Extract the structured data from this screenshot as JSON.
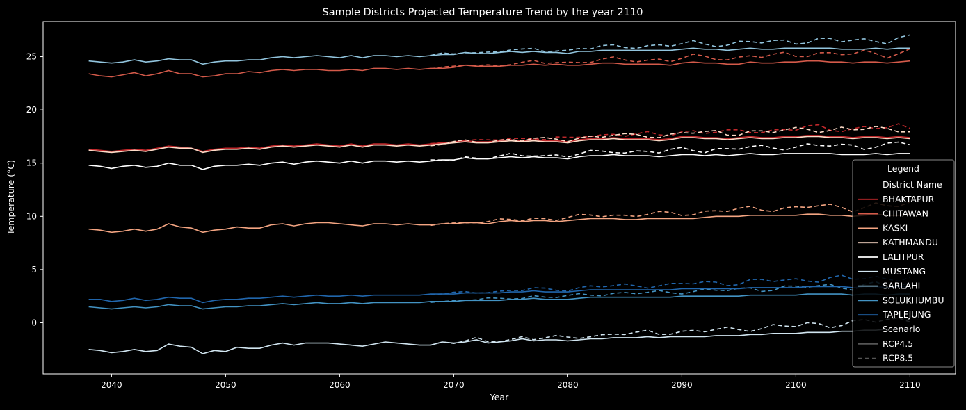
{
  "chart_data": {
    "type": "line",
    "title": "Sample Districts Projected Temperature Trend by the year 2110",
    "xlabel": "Year",
    "ylabel": "Temperature (°C)",
    "xlim": [
      2034,
      2114
    ],
    "ylim": [
      -4.8,
      28.3
    ],
    "xticks": [
      2040,
      2050,
      2060,
      2070,
      2080,
      2090,
      2100,
      2110
    ],
    "yticks": [
      0,
      5,
      10,
      15,
      20,
      25
    ],
    "grid": false,
    "legend": {
      "placement": "right",
      "title": "Legend",
      "group_headers": [
        "District Name",
        "Scenario"
      ],
      "scenario_items": [
        {
          "name": "RCP4.5",
          "style": "solid",
          "color": "#555555"
        },
        {
          "name": "RCP8.5",
          "style": "dashed",
          "color": "#555555"
        }
      ]
    },
    "series_meta": [
      {
        "name": "BHAKTAPUR",
        "color": "#c0282b",
        "base": [
          16.3,
          16.2,
          16.1,
          16.2,
          16.3,
          16.2,
          16.4,
          16.6,
          16.5,
          16.4,
          16.1,
          16.3,
          16.4,
          16.4,
          16.5,
          16.4,
          16.6,
          16.7,
          16.6,
          16.7,
          16.8,
          16.7,
          16.6,
          16.8,
          16.6,
          16.8,
          16.8,
          16.7,
          16.8,
          16.7,
          16.8,
          16.9,
          17.0,
          17.1,
          17.0,
          17.0,
          17.1,
          17.2,
          17.1,
          17.2,
          17.1,
          17.1,
          17.0,
          17.2,
          17.3,
          17.3,
          17.4,
          17.3,
          17.3,
          17.3,
          17.2,
          17.3,
          17.5,
          17.5,
          17.4,
          17.4,
          17.3,
          17.4,
          17.5,
          17.4,
          17.4,
          17.5,
          17.5,
          17.6,
          17.6,
          17.5,
          17.5,
          17.4,
          17.5,
          17.5,
          17.4,
          17.5,
          17.4
        ]
      },
      {
        "name": "CHITAWAN",
        "color": "#d45a4a",
        "base": [
          23.4,
          23.2,
          23.1,
          23.3,
          23.5,
          23.2,
          23.4,
          23.7,
          23.4,
          23.4,
          23.1,
          23.2,
          23.4,
          23.4,
          23.6,
          23.5,
          23.7,
          23.8,
          23.7,
          23.8,
          23.8,
          23.7,
          23.7,
          23.8,
          23.7,
          23.9,
          23.9,
          23.8,
          23.9,
          23.8,
          23.9,
          23.9,
          24.0,
          24.2,
          24.1,
          24.1,
          24.1,
          24.2,
          24.2,
          24.3,
          24.2,
          24.3,
          24.2,
          24.2,
          24.3,
          24.4,
          24.4,
          24.3,
          24.3,
          24.3,
          24.3,
          24.2,
          24.4,
          24.5,
          24.4,
          24.4,
          24.3,
          24.3,
          24.5,
          24.4,
          24.4,
          24.5,
          24.5,
          24.6,
          24.6,
          24.5,
          24.5,
          24.4,
          24.5,
          24.5,
          24.4,
          24.5,
          24.6
        ]
      },
      {
        "name": "KASKI",
        "color": "#f4a582",
        "base": [
          8.8,
          8.7,
          8.5,
          8.6,
          8.8,
          8.6,
          8.8,
          9.3,
          9.0,
          8.9,
          8.5,
          8.7,
          8.8,
          9.0,
          8.9,
          8.9,
          9.2,
          9.3,
          9.1,
          9.3,
          9.4,
          9.4,
          9.3,
          9.2,
          9.1,
          9.3,
          9.3,
          9.2,
          9.3,
          9.2,
          9.2,
          9.3,
          9.3,
          9.4,
          9.4,
          9.3,
          9.5,
          9.6,
          9.5,
          9.6,
          9.6,
          9.5,
          9.6,
          9.7,
          9.8,
          9.8,
          9.8,
          9.7,
          9.7,
          9.8,
          9.8,
          9.8,
          9.8,
          9.8,
          9.9,
          10.0,
          10.0,
          10.0,
          10.1,
          10.1,
          10.1,
          10.1,
          10.1,
          10.2,
          10.2,
          10.1,
          10.1,
          10.0,
          10.1,
          10.2,
          10.1,
          10.1,
          10.2
        ]
      },
      {
        "name": "KATHMANDU",
        "color": "#fddbc7",
        "base": [
          16.2,
          16.1,
          16.0,
          16.1,
          16.2,
          16.1,
          16.3,
          16.5,
          16.4,
          16.4,
          16.0,
          16.2,
          16.3,
          16.3,
          16.4,
          16.3,
          16.5,
          16.6,
          16.5,
          16.6,
          16.7,
          16.6,
          16.5,
          16.7,
          16.5,
          16.7,
          16.7,
          16.6,
          16.7,
          16.6,
          16.7,
          16.8,
          16.9,
          17.0,
          16.9,
          16.9,
          17.0,
          17.1,
          17.0,
          17.1,
          17.0,
          17.0,
          16.9,
          17.1,
          17.2,
          17.2,
          17.3,
          17.2,
          17.2,
          17.2,
          17.1,
          17.2,
          17.4,
          17.4,
          17.3,
          17.3,
          17.2,
          17.3,
          17.4,
          17.3,
          17.3,
          17.4,
          17.4,
          17.5,
          17.5,
          17.4,
          17.4,
          17.3,
          17.4,
          17.4,
          17.3,
          17.4,
          17.3
        ]
      },
      {
        "name": "LALITPUR",
        "color": "#ffffff",
        "base": [
          14.8,
          14.7,
          14.5,
          14.7,
          14.8,
          14.6,
          14.7,
          15.0,
          14.8,
          14.8,
          14.4,
          14.7,
          14.8,
          14.8,
          14.9,
          14.8,
          15.0,
          15.1,
          14.9,
          15.1,
          15.2,
          15.1,
          15.0,
          15.2,
          15.0,
          15.2,
          15.2,
          15.1,
          15.2,
          15.1,
          15.2,
          15.3,
          15.3,
          15.5,
          15.4,
          15.4,
          15.5,
          15.6,
          15.5,
          15.6,
          15.5,
          15.5,
          15.4,
          15.6,
          15.7,
          15.7,
          15.8,
          15.7,
          15.7,
          15.7,
          15.6,
          15.7,
          15.8,
          15.8,
          15.7,
          15.8,
          15.7,
          15.8,
          15.9,
          15.8,
          15.8,
          15.9,
          15.9,
          15.9,
          15.9,
          15.9,
          15.8,
          15.8,
          15.8,
          15.9,
          15.8,
          15.9,
          15.9
        ]
      },
      {
        "name": "MUSTANG",
        "color": "#d1e5f0",
        "base": [
          -2.5,
          -2.6,
          -2.8,
          -2.7,
          -2.5,
          -2.7,
          -2.6,
          -2.0,
          -2.2,
          -2.3,
          -2.9,
          -2.6,
          -2.7,
          -2.3,
          -2.4,
          -2.4,
          -2.1,
          -1.9,
          -2.1,
          -1.9,
          -1.9,
          -1.9,
          -2.0,
          -2.1,
          -2.2,
          -2.0,
          -1.8,
          -1.9,
          -2.0,
          -2.1,
          -2.1,
          -1.8,
          -1.9,
          -1.8,
          -1.6,
          -1.9,
          -1.8,
          -1.7,
          -1.5,
          -1.7,
          -1.6,
          -1.6,
          -1.7,
          -1.6,
          -1.5,
          -1.5,
          -1.4,
          -1.4,
          -1.4,
          -1.3,
          -1.4,
          -1.3,
          -1.3,
          -1.3,
          -1.3,
          -1.2,
          -1.2,
          -1.2,
          -1.1,
          -1.1,
          -1.0,
          -1.0,
          -1.0,
          -0.9,
          -0.9,
          -0.9,
          -0.8,
          -0.8,
          -0.7,
          -0.7,
          -0.6,
          -0.6,
          -0.6
        ]
      },
      {
        "name": "SARLAHI",
        "color": "#92c5de",
        "base": [
          24.6,
          24.5,
          24.4,
          24.5,
          24.7,
          24.5,
          24.6,
          24.8,
          24.7,
          24.7,
          24.3,
          24.5,
          24.6,
          24.6,
          24.7,
          24.7,
          24.9,
          25.0,
          24.9,
          25.0,
          25.1,
          25.0,
          24.9,
          25.1,
          24.9,
          25.1,
          25.1,
          25.0,
          25.1,
          25.0,
          25.1,
          25.2,
          25.2,
          25.4,
          25.3,
          25.3,
          25.4,
          25.5,
          25.4,
          25.5,
          25.4,
          25.4,
          25.3,
          25.5,
          25.5,
          25.6,
          25.6,
          25.6,
          25.6,
          25.6,
          25.6,
          25.6,
          25.7,
          25.8,
          25.7,
          25.7,
          25.6,
          25.7,
          25.8,
          25.7,
          25.7,
          25.8,
          25.8,
          25.8,
          25.8,
          25.8,
          25.7,
          25.7,
          25.7,
          25.8,
          25.7,
          25.8,
          25.8
        ]
      },
      {
        "name": "SOLUKHUMBU",
        "color": "#4393c3",
        "base": [
          1.5,
          1.4,
          1.3,
          1.4,
          1.5,
          1.4,
          1.5,
          1.7,
          1.6,
          1.6,
          1.3,
          1.4,
          1.5,
          1.5,
          1.6,
          1.6,
          1.7,
          1.8,
          1.7,
          1.8,
          1.9,
          1.8,
          1.8,
          1.9,
          1.8,
          1.9,
          1.9,
          1.9,
          1.9,
          1.9,
          2.0,
          2.0,
          2.0,
          2.1,
          2.1,
          2.1,
          2.1,
          2.2,
          2.2,
          2.3,
          2.2,
          2.2,
          2.2,
          2.3,
          2.4,
          2.4,
          2.4,
          2.4,
          2.4,
          2.4,
          2.4,
          2.4,
          2.5,
          2.5,
          2.5,
          2.5,
          2.5,
          2.5,
          2.6,
          2.6,
          2.6,
          2.6,
          2.6,
          2.7,
          2.7,
          2.7,
          2.7,
          2.6,
          2.7,
          2.7,
          2.6,
          2.7,
          2.7
        ]
      },
      {
        "name": "TAPLEJUNG",
        "color": "#2166ac",
        "base": [
          2.2,
          2.2,
          2.0,
          2.1,
          2.3,
          2.1,
          2.2,
          2.4,
          2.3,
          2.3,
          1.9,
          2.1,
          2.2,
          2.2,
          2.3,
          2.3,
          2.4,
          2.5,
          2.4,
          2.5,
          2.6,
          2.5,
          2.5,
          2.6,
          2.5,
          2.6,
          2.6,
          2.6,
          2.6,
          2.6,
          2.7,
          2.7,
          2.7,
          2.8,
          2.8,
          2.8,
          2.8,
          2.9,
          2.9,
          3.0,
          2.9,
          2.9,
          2.9,
          3.0,
          3.1,
          3.1,
          3.1,
          3.1,
          3.1,
          3.1,
          3.1,
          3.1,
          3.2,
          3.2,
          3.2,
          3.2,
          3.2,
          3.2,
          3.3,
          3.3,
          3.3,
          3.3,
          3.3,
          3.4,
          3.4,
          3.4,
          3.4,
          3.3,
          3.4,
          3.4,
          3.3,
          3.4,
          3.4
        ]
      }
    ],
    "years": [
      2038,
      2110
    ],
    "rcp85_start_year": 2068,
    "rcp85_extra_warming_by_2110": 0.9
  }
}
